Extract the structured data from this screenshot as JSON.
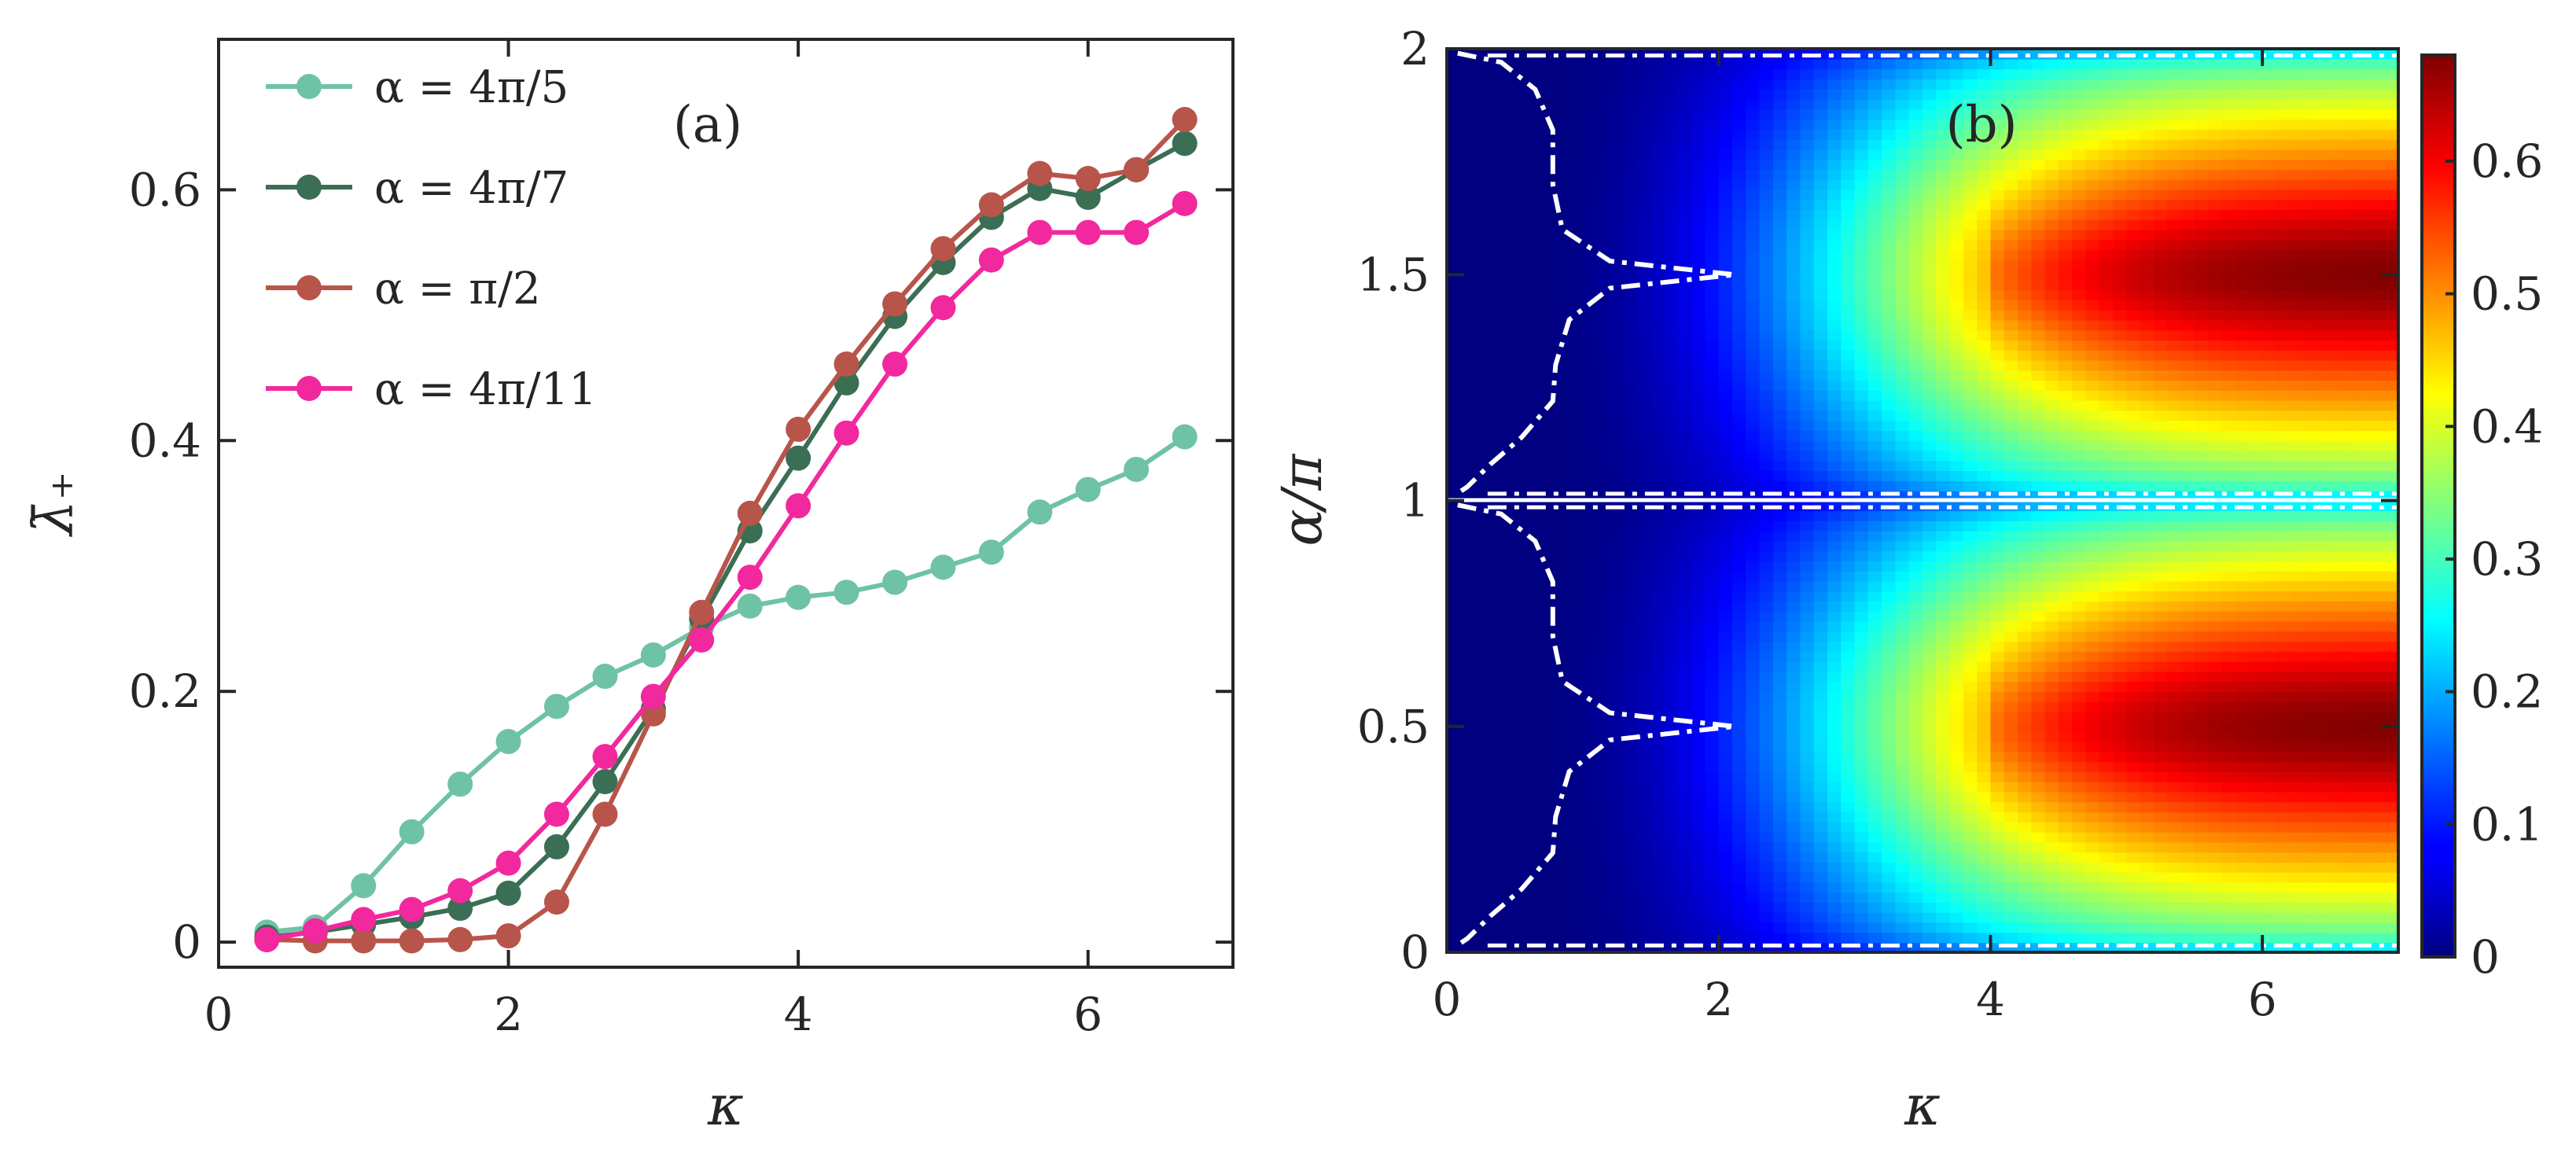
{
  "chart_data": [
    {
      "type": "line",
      "panel_label": "(a)",
      "xlabel": "κ",
      "ylabel": "λ̄₊",
      "xlim": [
        0,
        7
      ],
      "ylim": [
        -0.02,
        0.72
      ],
      "xticks": [
        0,
        2,
        4,
        6
      ],
      "xtick_labels": [
        "0",
        "2",
        "4",
        "6"
      ],
      "yticks": [
        0,
        0.2,
        0.4,
        0.6
      ],
      "ytick_labels": [
        "0",
        "0.2",
        "0.4",
        "0.6"
      ],
      "grid": false,
      "legend_position": "top-left",
      "x": [
        0.333,
        0.667,
        1.0,
        1.333,
        1.667,
        2.0,
        2.333,
        2.667,
        3.0,
        3.333,
        3.667,
        4.0,
        4.333,
        4.667,
        5.0,
        5.333,
        5.667,
        6.0,
        6.333,
        6.667
      ],
      "series": [
        {
          "name": "α = 4π/5",
          "color": "#6fc3a5",
          "values": [
            0.008,
            0.012,
            0.045,
            0.088,
            0.126,
            0.16,
            0.188,
            0.212,
            0.229,
            0.251,
            0.268,
            0.275,
            0.279,
            0.287,
            0.299,
            0.311,
            0.343,
            0.361,
            0.377,
            0.403
          ]
        },
        {
          "name": "α = 4π/7",
          "color": "#3a6e55",
          "values": [
            0.004,
            0.008,
            0.014,
            0.02,
            0.027,
            0.039,
            0.076,
            0.128,
            0.186,
            0.258,
            0.328,
            0.386,
            0.446,
            0.499,
            0.542,
            0.578,
            0.601,
            0.594,
            0.616,
            0.637
          ]
        },
        {
          "name": "α = π/2",
          "color": "#b8554a",
          "values": [
            0.002,
            0.001,
            0.001,
            0.001,
            0.002,
            0.005,
            0.032,
            0.102,
            0.182,
            0.263,
            0.342,
            0.409,
            0.461,
            0.509,
            0.553,
            0.588,
            0.613,
            0.609,
            0.616,
            0.656
          ]
        },
        {
          "name": "α = 4π/11",
          "color": "#f2289e",
          "values": [
            0.002,
            0.009,
            0.018,
            0.026,
            0.041,
            0.063,
            0.102,
            0.148,
            0.196,
            0.241,
            0.291,
            0.348,
            0.406,
            0.461,
            0.506,
            0.544,
            0.566,
            0.566,
            0.566,
            0.589
          ]
        }
      ]
    },
    {
      "type": "heatmap",
      "panel_label": "(b)",
      "xlabel": "κ",
      "ylabel": "α/π",
      "xlim": [
        0,
        7
      ],
      "ylim": [
        0,
        2
      ],
      "xticks": [
        0,
        2,
        4,
        6
      ],
      "xtick_labels": [
        "0",
        "2",
        "4",
        "6"
      ],
      "yticks": [
        0,
        0.5,
        1,
        1.5,
        2
      ],
      "ytick_labels": [
        "0",
        "0.5",
        "1",
        "1.5",
        "2"
      ],
      "colormap": "jet",
      "colorbar": {
        "range": [
          0,
          0.68
        ],
        "ticks": [
          0,
          0.1,
          0.2,
          0.3,
          0.4,
          0.5,
          0.6
        ],
        "tick_labels": [
          "0",
          "0.1",
          "0.2",
          "0.3",
          "0.4",
          "0.5",
          "0.6"
        ]
      },
      "contour": {
        "style": "white dash-dot",
        "level": 0.02,
        "points_lower": [
          [
            0.08,
            0.99
          ],
          [
            0.4,
            0.97
          ],
          [
            0.65,
            0.91
          ],
          [
            0.78,
            0.82
          ],
          [
            0.78,
            0.7
          ],
          [
            0.85,
            0.6
          ],
          [
            1.2,
            0.53
          ],
          [
            2.12,
            0.5
          ],
          [
            1.2,
            0.47
          ],
          [
            0.9,
            0.4
          ],
          [
            0.8,
            0.3
          ],
          [
            0.78,
            0.22
          ],
          [
            0.55,
            0.14
          ],
          [
            0.32,
            0.08
          ],
          [
            0.15,
            0.03
          ],
          [
            0.1,
            0.02
          ]
        ],
        "points_upper": [
          [
            0.08,
            1.99
          ],
          [
            0.4,
            1.97
          ],
          [
            0.65,
            1.91
          ],
          [
            0.78,
            1.82
          ],
          [
            0.78,
            1.7
          ],
          [
            0.85,
            1.6
          ],
          [
            1.2,
            1.53
          ],
          [
            2.12,
            1.5
          ],
          [
            1.2,
            1.47
          ],
          [
            0.9,
            1.4
          ],
          [
            0.8,
            1.3
          ],
          [
            0.78,
            1.22
          ],
          [
            0.55,
            1.14
          ],
          [
            0.32,
            1.08
          ],
          [
            0.15,
            1.03
          ],
          [
            0.1,
            1.02
          ]
        ]
      }
    }
  ]
}
